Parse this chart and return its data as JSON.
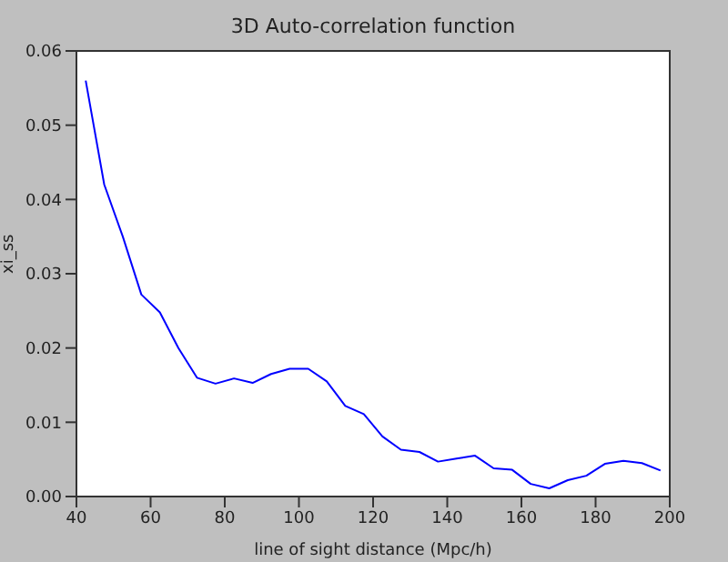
{
  "chart_data": {
    "type": "line",
    "title": "3D Auto-correlation function",
    "xlabel": "line of sight distance (Mpc/h)",
    "ylabel": "xi_ss",
    "x": [
      42.5,
      47.5,
      52.5,
      57.5,
      62.5,
      67.5,
      72.5,
      77.5,
      82.5,
      87.5,
      92.5,
      97.5,
      102.5,
      107.5,
      112.5,
      117.5,
      122.5,
      127.5,
      132.5,
      137.5,
      142.5,
      147.5,
      152.5,
      157.5,
      162.5,
      167.5,
      172.5,
      177.5,
      182.5,
      187.5,
      192.5,
      197.5
    ],
    "series": [
      {
        "color": "#0000ff",
        "values": [
          0.056,
          0.042,
          0.035,
          0.0272,
          0.0248,
          0.02,
          0.016,
          0.0152,
          0.0159,
          0.0153,
          0.0165,
          0.0172,
          0.0172,
          0.0155,
          0.0122,
          0.0111,
          0.0081,
          0.0063,
          0.006,
          0.0047,
          0.0051,
          0.0055,
          0.0038,
          0.0036,
          0.0017,
          0.0011,
          0.0022,
          0.0028,
          0.0044,
          0.0048,
          0.0045,
          0.0035
        ]
      }
    ],
    "xlim": [
      40,
      200
    ],
    "xticks": [
      40,
      60,
      80,
      100,
      120,
      140,
      160,
      180,
      200
    ],
    "ylim": [
      0,
      0.06
    ],
    "yticks": [
      {
        "value": 0,
        "label": "0.00"
      },
      0.01,
      0.02,
      0.03,
      0.04,
      0.05,
      0.06
    ],
    "legend": false,
    "marker": "none",
    "line_style": "solid"
  }
}
